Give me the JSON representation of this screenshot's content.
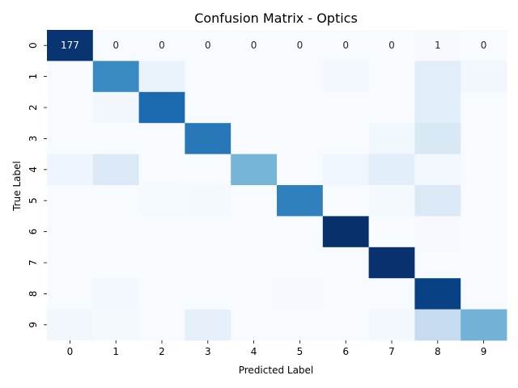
{
  "chart_data": {
    "type": "heatmap",
    "title": "Confusion Matrix - Optics",
    "xlabel": "Predicted Label",
    "ylabel": "True Label",
    "x_categories": [
      "0",
      "1",
      "2",
      "3",
      "4",
      "5",
      "6",
      "7",
      "8",
      "9"
    ],
    "y_categories": [
      "0",
      "1",
      "2",
      "3",
      "4",
      "5",
      "6",
      "7",
      "8",
      "9"
    ],
    "colormap": "Blues",
    "colorbar": false,
    "grid": false,
    "vmin": 0,
    "vmax": 180,
    "values": [
      [
        177,
        0,
        0,
        0,
        0,
        0,
        0,
        0,
        1,
        0
      ],
      [
        0,
        118,
        12,
        0,
        0,
        0,
        4,
        0,
        20,
        5
      ],
      [
        0,
        5,
        140,
        0,
        0,
        0,
        0,
        0,
        20,
        0
      ],
      [
        0,
        0,
        0,
        130,
        0,
        0,
        0,
        6,
        27,
        0
      ],
      [
        8,
        25,
        0,
        0,
        85,
        0,
        7,
        20,
        4,
        0
      ],
      [
        0,
        0,
        2,
        3,
        0,
        125,
        0,
        3,
        25,
        0
      ],
      [
        0,
        0,
        0,
        0,
        0,
        0,
        181,
        0,
        1,
        0
      ],
      [
        0,
        0,
        0,
        0,
        0,
        0,
        0,
        179,
        0,
        0
      ],
      [
        0,
        4,
        0,
        0,
        0,
        1,
        0,
        0,
        168,
        0
      ],
      [
        5,
        3,
        0,
        15,
        0,
        0,
        0,
        4,
        45,
        87
      ]
    ],
    "printed_values": [
      [
        "177",
        "0",
        "0",
        "0",
        "0",
        "0",
        "0",
        "0",
        "1",
        "0"
      ]
    ]
  }
}
